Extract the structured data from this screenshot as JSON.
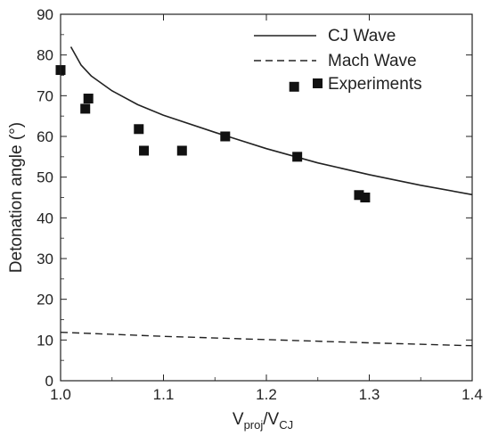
{
  "chart_data": {
    "type": "line",
    "title": "",
    "xlabel": {
      "main": "V",
      "sub1": "proj",
      "sep": "/V",
      "sub2": "CJ"
    },
    "ylabel": "Detonation angle (°)",
    "xlim": [
      1.0,
      1.4
    ],
    "ylim": [
      0,
      90
    ],
    "xticks": [
      1.0,
      1.1,
      1.2,
      1.3,
      1.4
    ],
    "yticks": [
      0,
      10,
      20,
      30,
      40,
      50,
      60,
      70,
      80,
      90
    ],
    "grid": false,
    "legend": "top-right",
    "series": [
      {
        "name": "CJ Wave",
        "style": "solid",
        "x": [
          1.01,
          1.02,
          1.03,
          1.05,
          1.075,
          1.1,
          1.15,
          1.2,
          1.25,
          1.3,
          1.35,
          1.4
        ],
        "y": [
          82.0,
          77.5,
          74.8,
          71.2,
          67.8,
          65.2,
          61.0,
          57.0,
          53.5,
          50.6,
          48.0,
          45.7
        ]
      },
      {
        "name": "Mach Wave",
        "style": "dashed",
        "x": [
          1.0,
          1.1,
          1.2,
          1.3,
          1.4
        ],
        "y": [
          11.9,
          10.9,
          10.1,
          9.3,
          8.6
        ]
      },
      {
        "name": "Experiments",
        "style": "markers",
        "x": [
          1.0,
          1.024,
          1.027,
          1.076,
          1.081,
          1.118,
          1.16,
          1.227,
          1.23,
          1.29,
          1.296
        ],
        "y": [
          76.3,
          66.8,
          69.3,
          61.8,
          56.5,
          56.5,
          60.0,
          72.2,
          55.0,
          45.6,
          45.0
        ]
      }
    ]
  }
}
